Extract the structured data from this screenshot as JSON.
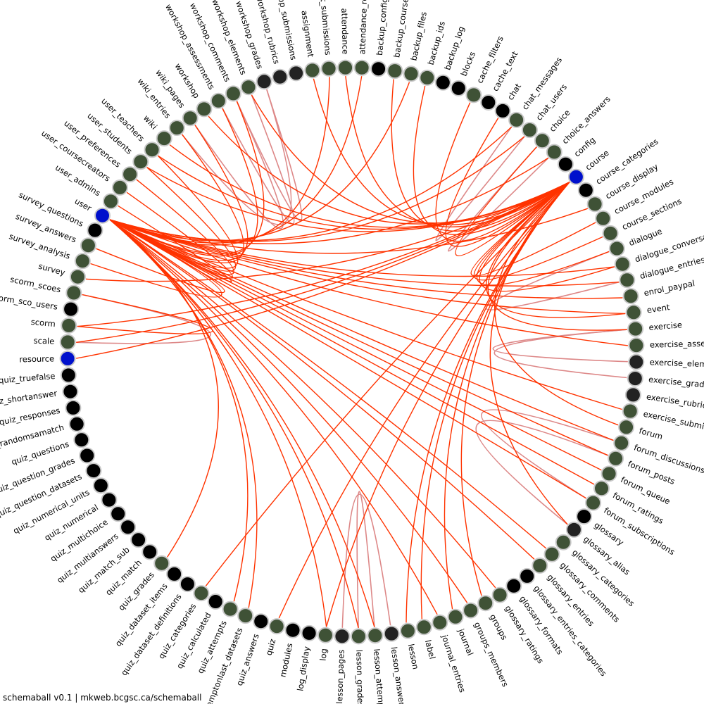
{
  "footer": "schemaball v0.1 | mkweb.bcgsc.ca/schemaball",
  "colors": {
    "background": "#ffffff",
    "edge_primary": "#ff3300",
    "edge_secondary": "#dd8888",
    "node_linked": "#3f5236",
    "node_unlinked": "#000000",
    "node_dark": "#222222",
    "node_hub": "#0010cc",
    "node_ring": "#c8c8c8"
  },
  "tables": [
    {
      "name": "assignment",
      "type": "green"
    },
    {
      "name": "assignment_submissions",
      "type": "green"
    },
    {
      "name": "attendance",
      "type": "green"
    },
    {
      "name": "attendance_roll",
      "type": "green"
    },
    {
      "name": "backup_config",
      "type": "black"
    },
    {
      "name": "backup_courses",
      "type": "green"
    },
    {
      "name": "backup_files",
      "type": "green"
    },
    {
      "name": "backup_ids",
      "type": "green"
    },
    {
      "name": "backup_log",
      "type": "black"
    },
    {
      "name": "blocks",
      "type": "black"
    },
    {
      "name": "cache_filters",
      "type": "green"
    },
    {
      "name": "cache_text",
      "type": "black"
    },
    {
      "name": "chat",
      "type": "black"
    },
    {
      "name": "chat_messages",
      "type": "green"
    },
    {
      "name": "chat_users",
      "type": "green"
    },
    {
      "name": "choice",
      "type": "green"
    },
    {
      "name": "choice_answers",
      "type": "green"
    },
    {
      "name": "config",
      "type": "black"
    },
    {
      "name": "course",
      "type": "blue"
    },
    {
      "name": "course_categories",
      "type": "black"
    },
    {
      "name": "course_display",
      "type": "green"
    },
    {
      "name": "course_modules",
      "type": "green"
    },
    {
      "name": "course_sections",
      "type": "green"
    },
    {
      "name": "dialogue",
      "type": "green"
    },
    {
      "name": "dialogue_conversations",
      "type": "green"
    },
    {
      "name": "dialogue_entries",
      "type": "green"
    },
    {
      "name": "enrol_paypal",
      "type": "green"
    },
    {
      "name": "event",
      "type": "green"
    },
    {
      "name": "exercise",
      "type": "green"
    },
    {
      "name": "exercise_assessments",
      "type": "green"
    },
    {
      "name": "exercise_elements",
      "type": "dark"
    },
    {
      "name": "exercise_grades",
      "type": "dark"
    },
    {
      "name": "exercise_rubrics",
      "type": "dark"
    },
    {
      "name": "exercise_submissions",
      "type": "green"
    },
    {
      "name": "forum",
      "type": "green"
    },
    {
      "name": "forum_discussions",
      "type": "green"
    },
    {
      "name": "forum_posts",
      "type": "green"
    },
    {
      "name": "forum_queue",
      "type": "green"
    },
    {
      "name": "forum_ratings",
      "type": "green"
    },
    {
      "name": "forum_subscriptions",
      "type": "green"
    },
    {
      "name": "glossary",
      "type": "black"
    },
    {
      "name": "glossary_alias",
      "type": "dark"
    },
    {
      "name": "glossary_categories",
      "type": "green"
    },
    {
      "name": "glossary_comments",
      "type": "green"
    },
    {
      "name": "glossary_entries",
      "type": "green"
    },
    {
      "name": "glossary_entries_categories",
      "type": "black"
    },
    {
      "name": "glossary_formats",
      "type": "black"
    },
    {
      "name": "glossary_ratings",
      "type": "green"
    },
    {
      "name": "groups",
      "type": "green"
    },
    {
      "name": "groups_members",
      "type": "green"
    },
    {
      "name": "journal",
      "type": "green"
    },
    {
      "name": "journal_entries",
      "type": "green"
    },
    {
      "name": "label",
      "type": "green"
    },
    {
      "name": "lesson",
      "type": "green"
    },
    {
      "name": "lesson_answers",
      "type": "dark"
    },
    {
      "name": "lesson_attempts",
      "type": "green"
    },
    {
      "name": "lesson_grades",
      "type": "green"
    },
    {
      "name": "lesson_pages",
      "type": "dark"
    },
    {
      "name": "log",
      "type": "green"
    },
    {
      "name": "log_display",
      "type": "black"
    },
    {
      "name": "modules",
      "type": "black"
    },
    {
      "name": "quiz",
      "type": "green"
    },
    {
      "name": "quiz_answers",
      "type": "black"
    },
    {
      "name": "quiz_attemptonlast_datasets",
      "type": "green"
    },
    {
      "name": "quiz_attempts",
      "type": "green"
    },
    {
      "name": "quiz_calculated",
      "type": "black"
    },
    {
      "name": "quiz_categories",
      "type": "green"
    },
    {
      "name": "quiz_dataset_definitions",
      "type": "black"
    },
    {
      "name": "quiz_dataset_items",
      "type": "black"
    },
    {
      "name": "quiz_grades",
      "type": "green"
    },
    {
      "name": "quiz_match",
      "type": "black"
    },
    {
      "name": "quiz_match_sub",
      "type": "black"
    },
    {
      "name": "quiz_multianswers",
      "type": "black"
    },
    {
      "name": "quiz_multichoice",
      "type": "black"
    },
    {
      "name": "quiz_numerical",
      "type": "black"
    },
    {
      "name": "quiz_numerical_units",
      "type": "black"
    },
    {
      "name": "quiz_question_datasets",
      "type": "black"
    },
    {
      "name": "quiz_question_grades",
      "type": "black"
    },
    {
      "name": "quiz_questions",
      "type": "black"
    },
    {
      "name": "quiz_randomsamatch",
      "type": "black"
    },
    {
      "name": "quiz_responses",
      "type": "black"
    },
    {
      "name": "quiz_shortanswer",
      "type": "black"
    },
    {
      "name": "quiz_truefalse",
      "type": "black"
    },
    {
      "name": "resource",
      "type": "blue"
    },
    {
      "name": "scale",
      "type": "green"
    },
    {
      "name": "scorm",
      "type": "green"
    },
    {
      "name": "scorm_sco_users",
      "type": "black"
    },
    {
      "name": "scorm_scoes",
      "type": "green"
    },
    {
      "name": "survey",
      "type": "green"
    },
    {
      "name": "survey_analysis",
      "type": "green"
    },
    {
      "name": "survey_answers",
      "type": "green"
    },
    {
      "name": "survey_questions",
      "type": "black"
    },
    {
      "name": "user",
      "type": "blue"
    },
    {
      "name": "user_admins",
      "type": "green"
    },
    {
      "name": "user_coursecreators",
      "type": "green"
    },
    {
      "name": "user_preferences",
      "type": "green"
    },
    {
      "name": "user_students",
      "type": "green"
    },
    {
      "name": "user_teachers",
      "type": "green"
    },
    {
      "name": "wiki",
      "type": "green"
    },
    {
      "name": "wiki_entries",
      "type": "green"
    },
    {
      "name": "wiki_pages",
      "type": "green"
    },
    {
      "name": "workshop",
      "type": "green"
    },
    {
      "name": "workshop_assessments",
      "type": "green"
    },
    {
      "name": "workshop_comments",
      "type": "green"
    },
    {
      "name": "workshop_elements",
      "type": "green"
    },
    {
      "name": "workshop_grades",
      "type": "dark"
    },
    {
      "name": "workshop_rubrics",
      "type": "dark"
    },
    {
      "name": "workshop_submissions",
      "type": "dark"
    }
  ],
  "links_primary": [
    [
      "assignment",
      "course"
    ],
    [
      "assignment_submissions",
      "user"
    ],
    [
      "attendance",
      "course"
    ],
    [
      "attendance_roll",
      "user"
    ],
    [
      "backup_courses",
      "course"
    ],
    [
      "chat_messages",
      "user"
    ],
    [
      "chat_users",
      "user"
    ],
    [
      "choice",
      "course"
    ],
    [
      "choice_answers",
      "user"
    ],
    [
      "course_display",
      "user"
    ],
    [
      "course_modules",
      "course"
    ],
    [
      "course_sections",
      "course"
    ],
    [
      "dialogue",
      "course"
    ],
    [
      "dialogue_conversations",
      "user"
    ],
    [
      "dialogue_entries",
      "user"
    ],
    [
      "enrol_paypal",
      "user"
    ],
    [
      "event",
      "user"
    ],
    [
      "event",
      "course"
    ],
    [
      "exercise",
      "course"
    ],
    [
      "exercise_submissions",
      "user"
    ],
    [
      "forum",
      "course"
    ],
    [
      "forum_discussions",
      "user"
    ],
    [
      "forum_posts",
      "user"
    ],
    [
      "forum_queue",
      "user"
    ],
    [
      "forum_ratings",
      "user"
    ],
    [
      "forum_subscriptions",
      "user"
    ],
    [
      "glossary_comments",
      "user"
    ],
    [
      "glossary_entries",
      "user"
    ],
    [
      "glossary_ratings",
      "user"
    ],
    [
      "groups",
      "course"
    ],
    [
      "groups_members",
      "user"
    ],
    [
      "journal",
      "course"
    ],
    [
      "journal_entries",
      "user"
    ],
    [
      "label",
      "course"
    ],
    [
      "lesson",
      "course"
    ],
    [
      "lesson_attempts",
      "user"
    ],
    [
      "lesson_grades",
      "user"
    ],
    [
      "log",
      "user"
    ],
    [
      "log",
      "course"
    ],
    [
      "quiz",
      "course"
    ],
    [
      "quiz_attempts",
      "user"
    ],
    [
      "quiz_attemptonlast_datasets",
      "user"
    ],
    [
      "quiz_categories",
      "course"
    ],
    [
      "quiz_grades",
      "user"
    ],
    [
      "resource",
      "course"
    ],
    [
      "scale",
      "course"
    ],
    [
      "scorm",
      "course"
    ],
    [
      "scorm_scoes",
      "scorm"
    ],
    [
      "survey",
      "course"
    ],
    [
      "survey_analysis",
      "user"
    ],
    [
      "survey_answers",
      "user"
    ],
    [
      "user_admins",
      "user"
    ],
    [
      "user_coursecreators",
      "user"
    ],
    [
      "user_preferences",
      "user"
    ],
    [
      "user_students",
      "user"
    ],
    [
      "user_teachers",
      "user"
    ],
    [
      "user_students",
      "course"
    ],
    [
      "user_teachers",
      "course"
    ],
    [
      "wiki",
      "course"
    ],
    [
      "wiki_entries",
      "user"
    ],
    [
      "wiki_pages",
      "user"
    ],
    [
      "workshop",
      "course"
    ],
    [
      "workshop_assessments",
      "user"
    ],
    [
      "workshop_comments",
      "user"
    ],
    [
      "workshop_elements",
      "course"
    ],
    [
      "dialogue_conversations",
      "course"
    ],
    [
      "exercise_assessments",
      "user"
    ],
    [
      "cache_filters",
      "course"
    ],
    [
      "chat",
      "course"
    ],
    [
      "backup_files",
      "user"
    ],
    [
      "backup_ids",
      "course"
    ],
    [
      "glossary_alias",
      "course"
    ]
  ],
  "links_secondary": [
    [
      "workshop_assessments",
      "workshop_elements"
    ],
    [
      "workshop_comments",
      "workshop_grades"
    ],
    [
      "wiki_entries",
      "workshop_grades"
    ],
    [
      "wiki_pages",
      "workshop_comments"
    ],
    [
      "chat_messages",
      "chat_users"
    ],
    [
      "choice",
      "choice_answers"
    ],
    [
      "dialogue_entries",
      "dialogue"
    ],
    [
      "exercise",
      "exercise_elements"
    ],
    [
      "exercise",
      "exercise_grades"
    ],
    [
      "forum_discussions",
      "forum_subscriptions"
    ],
    [
      "forum_posts",
      "glossary_alias"
    ],
    [
      "lesson_answers",
      "lesson_pages"
    ],
    [
      "lesson_attempts",
      "lesson_grades"
    ],
    [
      "scale",
      "scorm_scoes"
    ]
  ]
}
